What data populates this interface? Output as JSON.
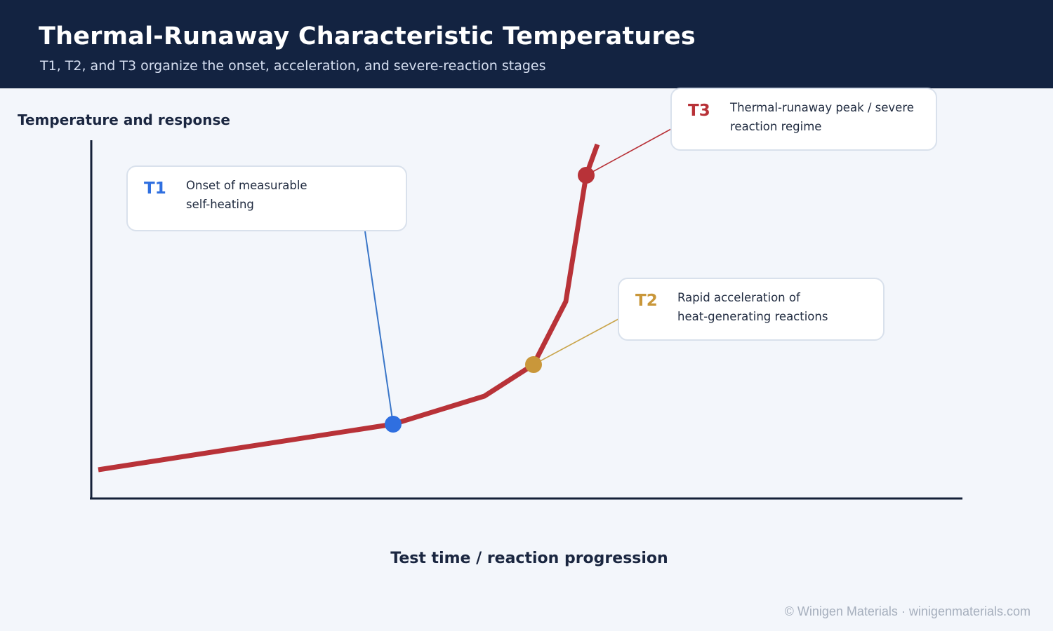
{
  "header": {
    "title": "Thermal-Runaway Characteristic Temperatures",
    "subtitle": "T1, T2, and T3 organize the onset, acceleration, and severe-reaction stages"
  },
  "axes": {
    "y_label": "Temperature and response",
    "x_label": "Test time / reaction progression"
  },
  "points": [
    {
      "label": "T1",
      "description": "Onset of measurable\nself-heating",
      "color": "#2f6fe0",
      "line_color": "#3a76c8"
    },
    {
      "label": "T2",
      "description": "Rapid acceleration of\nheat-generating reactions",
      "color": "#c9973a",
      "line_color": "#c9a44a"
    },
    {
      "label": "T3",
      "description": "Thermal-runaway peak / severe\nreaction regime",
      "color": "#b83238",
      "line_color": "#b83238"
    }
  ],
  "colors": {
    "curve": "#b83238",
    "axis": "#142038",
    "header_bg": "#132341",
    "background": "#f3f6fb"
  },
  "footer": {
    "credit": "© Winigen Materials · winigenmaterials.com"
  }
}
